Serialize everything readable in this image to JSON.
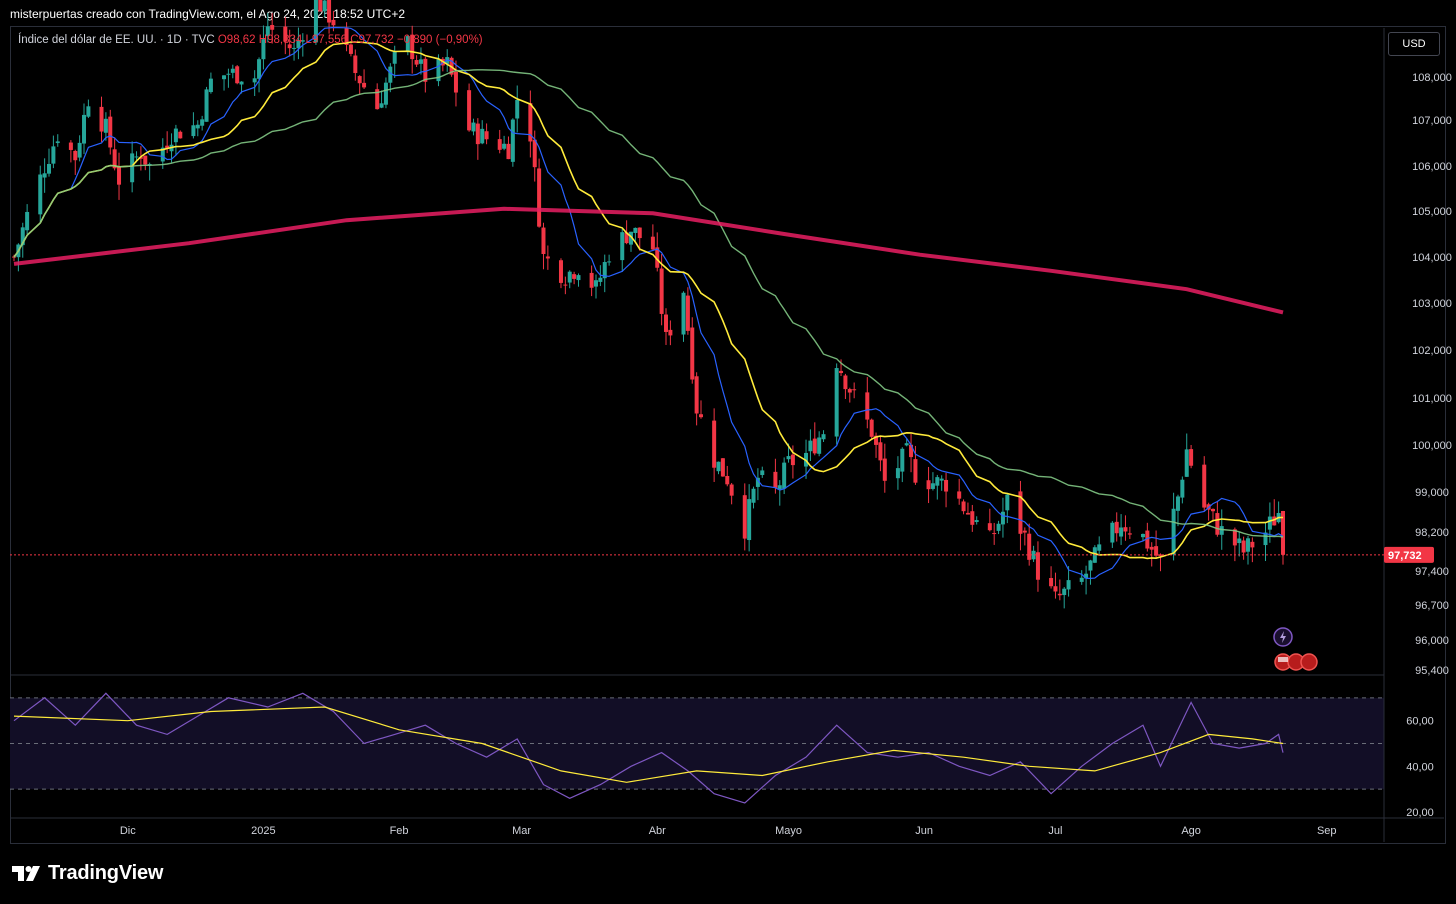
{
  "header": {
    "credit": "misterpuertas creado con TradingView.com, el Ago 24, 2025 18:52 UTC+2"
  },
  "legend": {
    "symbol": "Índice del dólar de EE. UU. · 1D · TVC",
    "open": "O98,62",
    "high": "H98,834",
    "low": "L97,556",
    "close": "C97,732",
    "change": "−0,890 (−0,90%)"
  },
  "currency_button": "USD",
  "last_price_label": "97,732",
  "footer": {
    "brand": "TradingView"
  },
  "colors": {
    "up": "#26a69a",
    "down": "#f23645",
    "ma_fast": "#2962ff",
    "ma_mid": "#ffeb3b",
    "ma_slow": "#81c784",
    "ma_200": "#e91e63",
    "rsi": "#7e57c2",
    "rsi_ma": "#ffeb3b",
    "price_line": "#f23645"
  },
  "chart_data": [
    {
      "type": "candlestick",
      "title": "",
      "ylabel": "",
      "price_ticks": [
        "108,000",
        "107,000",
        "106,000",
        "105,000",
        "104,000",
        "103,000",
        "102,000",
        "101,000",
        "100,000",
        "99,000",
        "98,200",
        "97,400",
        "96,700",
        "96,000",
        "95,400"
      ],
      "price_tick_values": [
        108,
        107,
        106,
        105,
        104,
        103,
        102,
        101,
        100,
        99,
        98.2,
        97.4,
        96.7,
        96,
        95.4
      ],
      "x_ticks": [
        "Dic",
        "2025",
        "Feb",
        "Mar",
        "Abr",
        "Mayo",
        "Jun",
        "Jul",
        "Ago",
        "Sep"
      ],
      "x_tick_dates": [
        "2024-12-01",
        "2025-01-01",
        "2025-02-01",
        "2025-03-01",
        "2025-04-01",
        "2025-05-01",
        "2025-06-01",
        "2025-07-01",
        "2025-08-01",
        "2025-09-01"
      ],
      "last_price": 97.732,
      "close_path": [
        [
          "2024-11-05",
          104.0
        ],
        [
          "2024-11-08",
          104.9
        ],
        [
          "2024-11-12",
          106.0
        ],
        [
          "2024-11-15",
          106.7
        ],
        [
          "2024-11-19",
          106.2
        ],
        [
          "2024-11-22",
          107.5
        ],
        [
          "2024-11-26",
          106.8
        ],
        [
          "2024-11-29",
          105.7
        ],
        [
          "2024-12-04",
          106.3
        ],
        [
          "2024-12-06",
          106.0
        ],
        [
          "2024-12-11",
          106.7
        ],
        [
          "2024-12-17",
          106.9
        ],
        [
          "2024-12-20",
          107.9
        ],
        [
          "2024-12-24",
          108.1
        ],
        [
          "2024-12-30",
          108.0
        ],
        [
          "2025-01-02",
          109.2
        ],
        [
          "2025-01-08",
          108.6
        ],
        [
          "2025-01-13",
          109.8
        ],
        [
          "2025-01-17",
          109.3
        ],
        [
          "2025-01-22",
          108.1
        ],
        [
          "2025-01-27",
          107.3
        ],
        [
          "2025-01-31",
          108.4
        ],
        [
          "2025-02-03",
          108.8
        ],
        [
          "2025-02-07",
          108.0
        ],
        [
          "2025-02-12",
          108.3
        ],
        [
          "2025-02-17",
          106.8
        ],
        [
          "2025-02-21",
          106.6
        ],
        [
          "2025-02-26",
          106.4
        ],
        [
          "2025-02-28",
          107.5
        ],
        [
          "2025-03-03",
          106.7
        ],
        [
          "2025-03-06",
          104.0
        ],
        [
          "2025-03-11",
          103.6
        ],
        [
          "2025-03-14",
          103.8
        ],
        [
          "2025-03-18",
          103.3
        ],
        [
          "2025-03-21",
          104.1
        ],
        [
          "2025-03-26",
          104.6
        ],
        [
          "2025-03-31",
          104.2
        ],
        [
          "2025-04-03",
          102.2
        ],
        [
          "2025-04-07",
          103.3
        ],
        [
          "2025-04-10",
          100.8
        ],
        [
          "2025-04-14",
          99.7
        ],
        [
          "2025-04-17",
          99.3
        ],
        [
          "2025-04-21",
          98.3
        ],
        [
          "2025-04-24",
          99.3
        ],
        [
          "2025-04-28",
          99.0
        ],
        [
          "2025-05-01",
          99.6
        ],
        [
          "2025-05-05",
          99.8
        ],
        [
          "2025-05-09",
          100.3
        ],
        [
          "2025-05-12",
          101.8
        ],
        [
          "2025-05-16",
          101.0
        ],
        [
          "2025-05-20",
          100.3
        ],
        [
          "2025-05-23",
          99.2
        ],
        [
          "2025-05-28",
          99.8
        ],
        [
          "2025-05-30",
          99.4
        ],
        [
          "2025-06-03",
          99.2
        ],
        [
          "2025-06-06",
          99.2
        ],
        [
          "2025-06-11",
          98.6
        ],
        [
          "2025-06-16",
          98.0
        ],
        [
          "2025-06-20",
          98.8
        ],
        [
          "2025-06-24",
          98.1
        ],
        [
          "2025-06-27",
          97.4
        ],
        [
          "2025-07-01",
          96.8
        ],
        [
          "2025-07-07",
          97.2
        ],
        [
          "2025-07-11",
          97.8
        ],
        [
          "2025-07-16",
          98.4
        ],
        [
          "2025-07-21",
          98.1
        ],
        [
          "2025-07-25",
          97.6
        ],
        [
          "2025-07-29",
          98.9
        ],
        [
          "2025-07-31",
          99.9
        ],
        [
          "2025-08-04",
          98.7
        ],
        [
          "2025-08-08",
          98.2
        ],
        [
          "2025-08-13",
          97.8
        ],
        [
          "2025-08-18",
          98.2
        ],
        [
          "2025-08-21",
          98.6
        ],
        [
          "2025-08-22",
          97.732
        ]
      ]
    },
    {
      "type": "line",
      "title": "",
      "y_ticks": [
        "60,00",
        "40,00",
        "20,00"
      ],
      "y_tick_values": [
        60,
        40,
        20
      ],
      "bands": [
        70,
        50,
        30
      ],
      "series": [
        {
          "values_path": [
            [
              "2024-11-05",
              60
            ],
            [
              "2024-11-12",
              70
            ],
            [
              "2024-11-19",
              58
            ],
            [
              "2024-11-26",
              72
            ],
            [
              "2024-12-03",
              58
            ],
            [
              "2024-12-10",
              54
            ],
            [
              "2024-12-17",
              62
            ],
            [
              "2024-12-24",
              70
            ],
            [
              "2025-01-02",
              66
            ],
            [
              "2025-01-10",
              72
            ],
            [
              "2025-01-17",
              64
            ],
            [
              "2025-01-24",
              50
            ],
            [
              "2025-01-31",
              54
            ],
            [
              "2025-02-07",
              58
            ],
            [
              "2025-02-14",
              50
            ],
            [
              "2025-02-21",
              44
            ],
            [
              "2025-02-28",
              52
            ],
            [
              "2025-03-06",
              32
            ],
            [
              "2025-03-12",
              26
            ],
            [
              "2025-03-19",
              32
            ],
            [
              "2025-03-26",
              40
            ],
            [
              "2025-04-02",
              46
            ],
            [
              "2025-04-08",
              38
            ],
            [
              "2025-04-14",
              28
            ],
            [
              "2025-04-21",
              24
            ],
            [
              "2025-04-28",
              36
            ],
            [
              "2025-05-05",
              44
            ],
            [
              "2025-05-12",
              58
            ],
            [
              "2025-05-19",
              46
            ],
            [
              "2025-05-26",
              44
            ],
            [
              "2025-06-02",
              46
            ],
            [
              "2025-06-09",
              40
            ],
            [
              "2025-06-16",
              36
            ],
            [
              "2025-06-23",
              42
            ],
            [
              "2025-06-30",
              28
            ],
            [
              "2025-07-07",
              40
            ],
            [
              "2025-07-14",
              50
            ],
            [
              "2025-07-21",
              58
            ],
            [
              "2025-07-25",
              40
            ],
            [
              "2025-08-01",
              68
            ],
            [
              "2025-08-06",
              50
            ],
            [
              "2025-08-12",
              48
            ],
            [
              "2025-08-18",
              50
            ],
            [
              "2025-08-21",
              54
            ],
            [
              "2025-08-22",
              46
            ]
          ]
        },
        {
          "values_path": [
            [
              "2024-11-05",
              62
            ],
            [
              "2024-12-01",
              60
            ],
            [
              "2024-12-20",
              64
            ],
            [
              "2025-01-15",
              66
            ],
            [
              "2025-02-01",
              56
            ],
            [
              "2025-02-20",
              50
            ],
            [
              "2025-03-10",
              38
            ],
            [
              "2025-03-25",
              33
            ],
            [
              "2025-04-10",
              38
            ],
            [
              "2025-04-25",
              36
            ],
            [
              "2025-05-10",
              42
            ],
            [
              "2025-05-25",
              47
            ],
            [
              "2025-06-10",
              44
            ],
            [
              "2025-06-25",
              40
            ],
            [
              "2025-07-10",
              38
            ],
            [
              "2025-07-25",
              46
            ],
            [
              "2025-08-05",
              54
            ],
            [
              "2025-08-15",
              52
            ],
            [
              "2025-08-22",
              50
            ]
          ]
        }
      ]
    }
  ]
}
